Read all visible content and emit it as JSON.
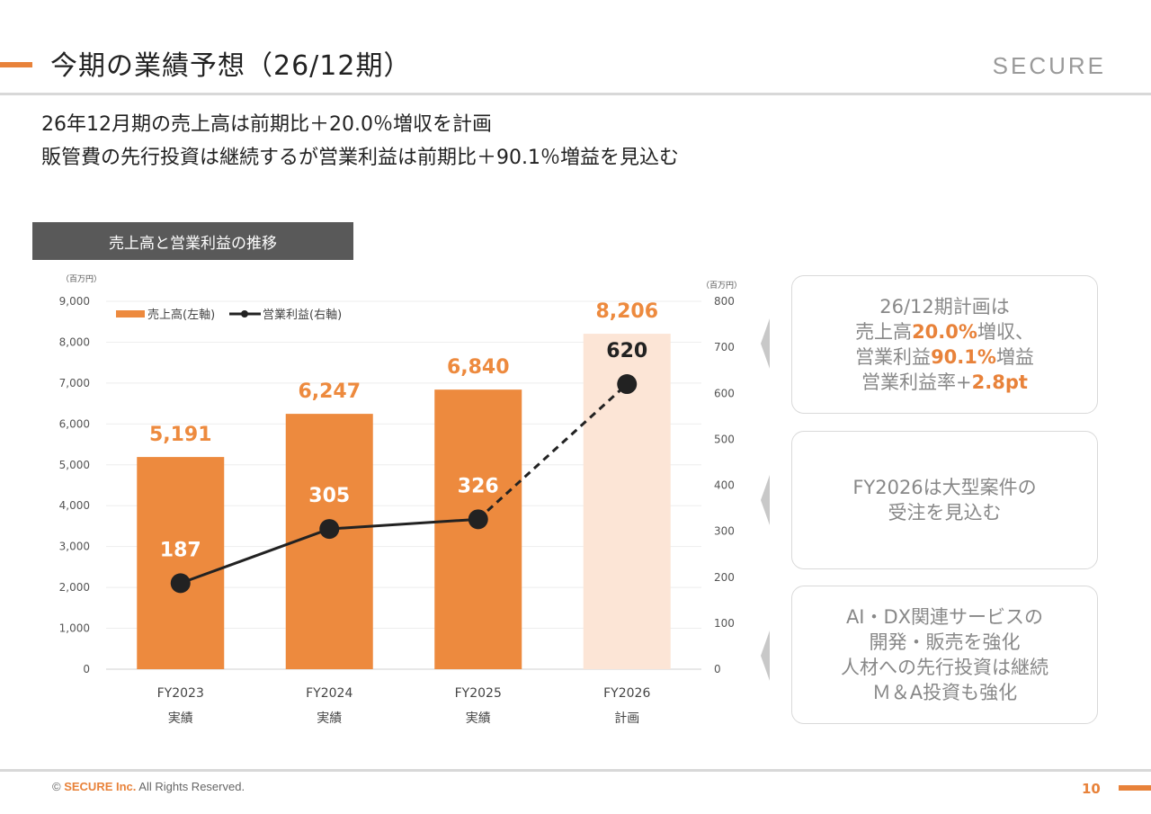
{
  "header": {
    "title": "今期の業績予想（26/12期）",
    "logo": "SECURE"
  },
  "lead": [
    "26年12月期の売上高は前期比＋20.0％増収を計画",
    "販管費の先行投資は継続するが営業利益は前期比＋90.1％増益を見込む"
  ],
  "chart_heading": "売上高と営業利益の推移",
  "chart_data": {
    "type": "bar+line",
    "categories": [
      "FY2023",
      "FY2024",
      "FY2025",
      "FY2026"
    ],
    "category_sublabels": [
      "実績",
      "実績",
      "実績",
      "計画"
    ],
    "left_axis": {
      "unit": "（百万円）",
      "ylim": [
        0,
        9000
      ],
      "ticks": [
        "0",
        "1,000",
        "2,000",
        "3,000",
        "4,000",
        "5,000",
        "6,000",
        "7,000",
        "8,000",
        "9,000"
      ]
    },
    "right_axis": {
      "unit": "（百万円）",
      "ylim": [
        0,
        800
      ],
      "ticks": [
        "0",
        "100",
        "200",
        "300",
        "400",
        "500",
        "600",
        "700",
        "800"
      ]
    },
    "series": [
      {
        "name": "売上高(左軸)",
        "type": "bar",
        "axis": "left",
        "values": [
          5191,
          6247,
          6840,
          8206
        ],
        "labels": [
          "5,191",
          "6,247",
          "6,840",
          "8,206"
        ],
        "color": "#ed8a3e",
        "plan_color": "#fce5d6"
      },
      {
        "name": "営業利益(右軸)",
        "type": "line",
        "axis": "right",
        "values": [
          187,
          305,
          326,
          620
        ],
        "labels": [
          "187",
          "305",
          "326",
          "620"
        ],
        "color": "#222222",
        "dashed_last_segment": true
      }
    ],
    "grid": true,
    "legend": "top-left"
  },
  "callouts": [
    {
      "lines": [
        [
          {
            "t": "26/12期計画は"
          }
        ],
        [
          {
            "t": "売上高"
          },
          {
            "t": "20.0%",
            "hl": true
          },
          {
            "t": "増収、"
          }
        ],
        [
          {
            "t": "営業利益"
          },
          {
            "t": "90.1%",
            "hl": true
          },
          {
            "t": "増益"
          }
        ],
        [
          {
            "t": "営業利益率+"
          },
          {
            "t": "2.8pt",
            "hl": true
          }
        ]
      ]
    },
    {
      "lines": [
        [
          {
            "t": "FY2026は大型案件の"
          }
        ],
        [
          {
            "t": "受注を見込む"
          }
        ]
      ]
    },
    {
      "lines": [
        [
          {
            "t": "AI・DX関連サービスの"
          }
        ],
        [
          {
            "t": "開発・販売を強化"
          }
        ],
        [
          {
            "t": "人材への先行投資は継続"
          }
        ],
        [
          {
            "t": "Ｍ＆A投資も強化"
          }
        ]
      ]
    }
  ],
  "footer": {
    "copyright": "© ",
    "company": "SECURE Inc.",
    "rights": " All Rights Reserved.",
    "page": "10"
  },
  "colors": {
    "accent": "#e8823a",
    "heading_bg": "#595959"
  }
}
